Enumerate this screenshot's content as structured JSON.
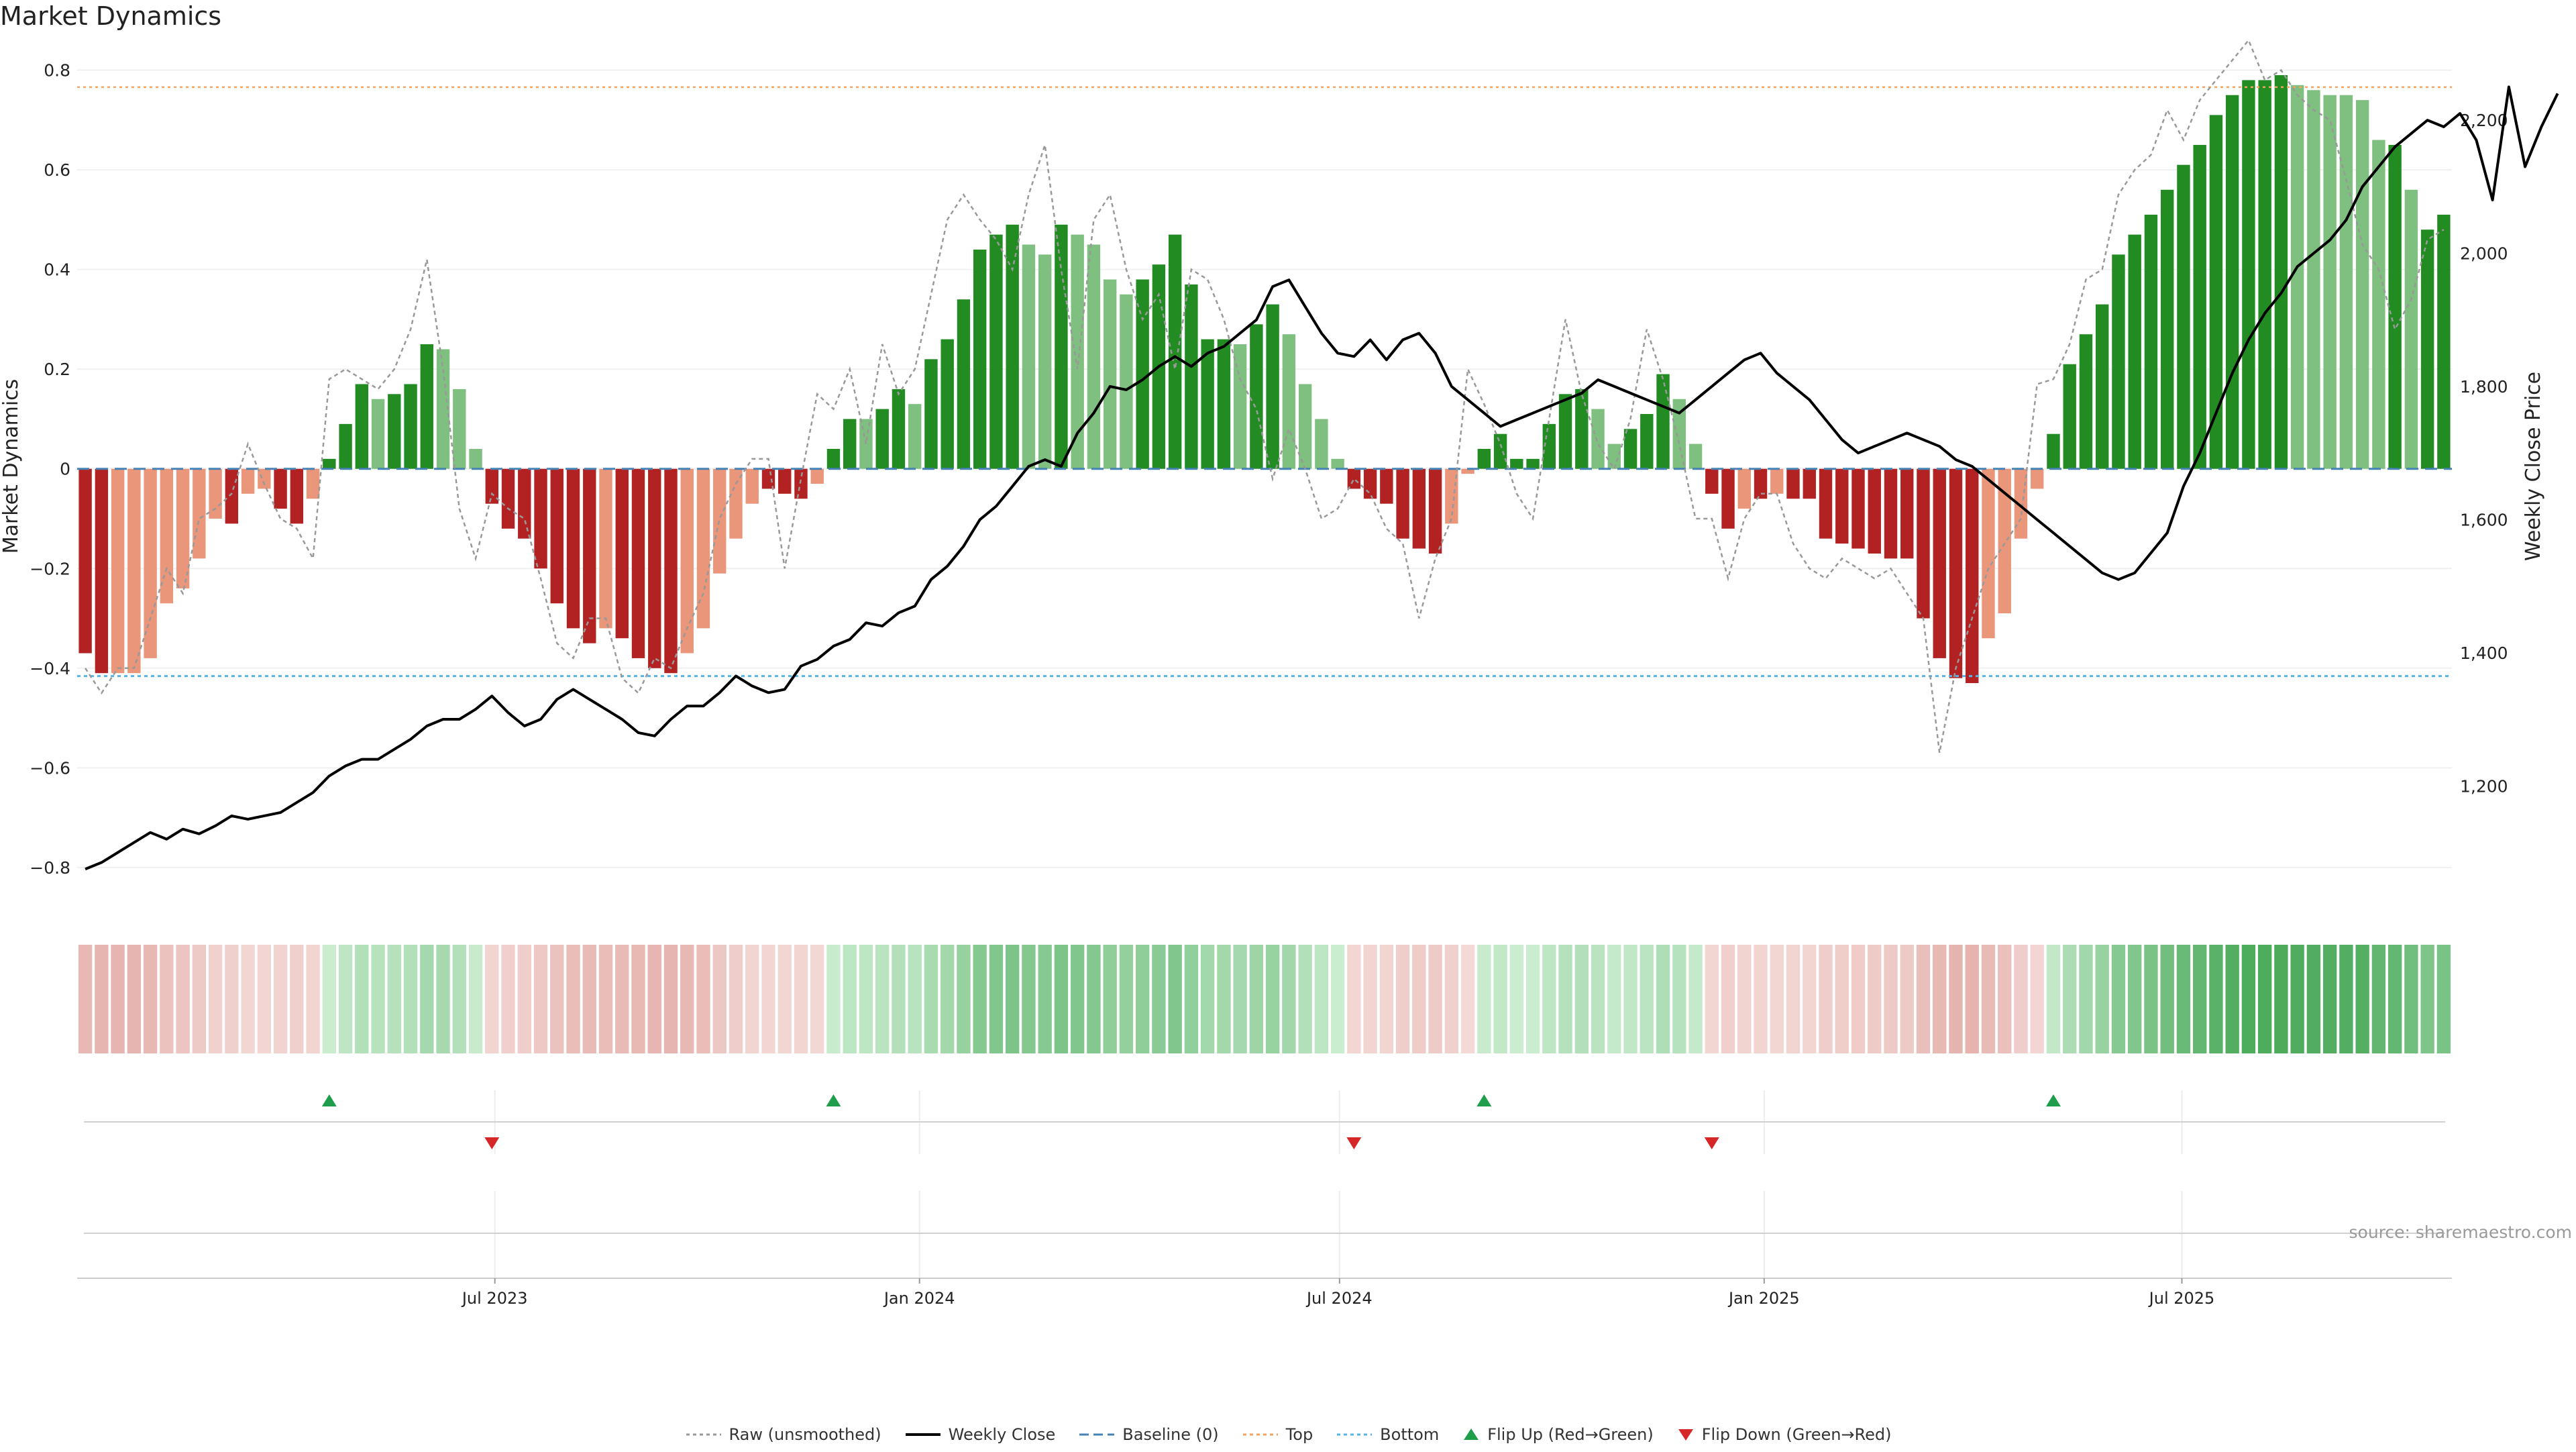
{
  "title": "Market Dynamics",
  "source": "source: sharemaestro.com",
  "colors": {
    "strong_green": "#228B22",
    "light_green": "#7FBF7F",
    "strong_red": "#B22222",
    "light_red": "#E9967A",
    "raw": "#999999",
    "close": "#000000",
    "baseline": "#4682B4",
    "top": "#F4A460",
    "bottom": "#56B4E9",
    "flip_up": "#1E9E4A",
    "flip_down": "#D62728"
  },
  "legend": [
    {
      "key": "raw",
      "label": "Raw (unsmoothed)"
    },
    {
      "key": "close",
      "label": "Weekly Close"
    },
    {
      "key": "baseline",
      "label": "Baseline (0)"
    },
    {
      "key": "top",
      "label": "Top"
    },
    {
      "key": "bottom",
      "label": "Bottom"
    },
    {
      "key": "flip_up",
      "label": "Flip Up (Red→Green)"
    },
    {
      "key": "flip_down",
      "label": "Flip Down (Green→Red)"
    }
  ],
  "chart_data": {
    "type": "bar",
    "title": "Market Dynamics",
    "ylabel": "Market Dynamics",
    "y2label": "Weekly Close Price",
    "ylim": [
      -0.85,
      0.86
    ],
    "y2lim": [
      1040,
      2320
    ],
    "yticks": [
      "0.8",
      "0.6",
      "0.4",
      "0.2",
      "0",
      "−0.2",
      "−0.4",
      "−0.6",
      "−0.8"
    ],
    "y2ticks": [
      "2,200",
      "2,000",
      "1,800",
      "1,600",
      "1,400",
      "1,200"
    ],
    "x_start": "2023-01-01",
    "x_end": "2025-10-26",
    "xticks": [
      {
        "label": "Jul 2023",
        "date": "2023-07-01"
      },
      {
        "label": "Jan 2024",
        "date": "2024-01-01"
      },
      {
        "label": "Jul 2024",
        "date": "2024-07-01"
      },
      {
        "label": "Jan 2025",
        "date": "2025-01-01"
      },
      {
        "label": "Jul 2025",
        "date": "2025-07-01"
      }
    ],
    "top_level": 0.766,
    "bottom_level": -0.416,
    "grid": true,
    "legend_position": "bottom",
    "series": [
      {
        "name": "Weekly Close",
        "role": "close"
      },
      {
        "name": "Raw (unsmoothed)",
        "role": "raw"
      }
    ],
    "bars": [
      -0.37,
      -0.41,
      -0.41,
      -0.41,
      -0.38,
      -0.27,
      -0.24,
      -0.18,
      -0.1,
      -0.11,
      -0.05,
      -0.04,
      -0.08,
      -0.11,
      -0.06,
      0.02,
      0.09,
      0.17,
      0.14,
      0.15,
      0.17,
      0.25,
      0.24,
      0.16,
      0.04,
      -0.07,
      -0.12,
      -0.14,
      -0.2,
      -0.27,
      -0.32,
      -0.35,
      -0.32,
      -0.34,
      -0.38,
      -0.4,
      -0.41,
      -0.37,
      -0.32,
      -0.21,
      -0.14,
      -0.07,
      -0.04,
      -0.05,
      -0.06,
      -0.03,
      0.04,
      0.1,
      0.1,
      0.12,
      0.16,
      0.13,
      0.22,
      0.26,
      0.34,
      0.44,
      0.47,
      0.49,
      0.45,
      0.43,
      0.49,
      0.47,
      0.45,
      0.38,
      0.35,
      0.38,
      0.41,
      0.47,
      0.37,
      0.26,
      0.26,
      0.25,
      0.29,
      0.33,
      0.27,
      0.17,
      0.1,
      0.02,
      -0.04,
      -0.06,
      -0.07,
      -0.14,
      -0.16,
      -0.17,
      -0.11,
      -0.01,
      0.04,
      0.07,
      0.02,
      0.02,
      0.09,
      0.15,
      0.16,
      0.12,
      0.05,
      0.08,
      0.11,
      0.19,
      0.14,
      0.05,
      -0.05,
      -0.12,
      -0.08,
      -0.06,
      -0.05,
      -0.06,
      -0.06,
      -0.14,
      -0.15,
      -0.16,
      -0.17,
      -0.18,
      -0.18,
      -0.3,
      -0.38,
      -0.42,
      -0.43,
      -0.34,
      -0.29,
      -0.14,
      -0.04,
      0.07,
      0.21,
      0.27,
      0.33,
      0.43,
      0.47,
      0.51,
      0.56,
      0.61,
      0.65,
      0.71,
      0.75,
      0.78,
      0.78,
      0.79,
      0.77,
      0.76,
      0.75,
      0.75,
      0.74,
      0.66,
      0.65,
      0.56,
      0.48,
      0.51
    ],
    "bar_strength": [
      1,
      1,
      0,
      0,
      0,
      0,
      0,
      0,
      0,
      1,
      0,
      0,
      1,
      1,
      0,
      1,
      1,
      1,
      0,
      1,
      1,
      1,
      0,
      0,
      0,
      1,
      1,
      1,
      1,
      1,
      1,
      1,
      0,
      1,
      1,
      1,
      1,
      0,
      0,
      0,
      0,
      0,
      1,
      1,
      1,
      0,
      1,
      1,
      0,
      1,
      1,
      0,
      1,
      1,
      1,
      1,
      1,
      1,
      0,
      0,
      1,
      0,
      0,
      0,
      0,
      1,
      1,
      1,
      1,
      1,
      1,
      0,
      1,
      1,
      0,
      0,
      0,
      0,
      1,
      1,
      1,
      1,
      1,
      1,
      0,
      0,
      1,
      1,
      1,
      1,
      1,
      1,
      1,
      0,
      0,
      1,
      1,
      1,
      0,
      0,
      1,
      1,
      0,
      1,
      0,
      1,
      1,
      1,
      1,
      1,
      1,
      1,
      1,
      1,
      1,
      1,
      1,
      0,
      0,
      0,
      0,
      1,
      1,
      1,
      1,
      1,
      1,
      1,
      1,
      1,
      1,
      1,
      1,
      1,
      1,
      1,
      0,
      0,
      0,
      0,
      0,
      0,
      1,
      0,
      1,
      1
    ],
    "raw": [
      -0.4,
      -0.45,
      -0.4,
      -0.4,
      -0.3,
      -0.2,
      -0.25,
      -0.1,
      -0.08,
      -0.05,
      0.05,
      -0.03,
      -0.1,
      -0.12,
      -0.18,
      0.18,
      0.2,
      0.18,
      0.16,
      0.2,
      0.28,
      0.42,
      0.2,
      -0.08,
      -0.18,
      -0.05,
      -0.08,
      -0.1,
      -0.22,
      -0.35,
      -0.38,
      -0.3,
      -0.3,
      -0.42,
      -0.45,
      -0.38,
      -0.4,
      -0.32,
      -0.25,
      -0.1,
      -0.03,
      0.02,
      0.02,
      -0.2,
      -0.02,
      0.15,
      0.12,
      0.2,
      0.05,
      0.25,
      0.15,
      0.2,
      0.35,
      0.5,
      0.55,
      0.5,
      0.46,
      0.4,
      0.55,
      0.65,
      0.4,
      0.2,
      0.5,
      0.55,
      0.4,
      0.3,
      0.35,
      0.2,
      0.4,
      0.38,
      0.3,
      0.18,
      0.12,
      -0.02,
      0.08,
      0.0,
      -0.1,
      -0.08,
      -0.02,
      -0.05,
      -0.12,
      -0.15,
      -0.3,
      -0.18,
      -0.1,
      0.2,
      0.13,
      0.05,
      -0.05,
      -0.1,
      0.1,
      0.3,
      0.15,
      0.05,
      0.0,
      0.1,
      0.28,
      0.18,
      0.05,
      -0.1,
      -0.1,
      -0.22,
      -0.1,
      -0.05,
      -0.05,
      -0.15,
      -0.2,
      -0.22,
      -0.18,
      -0.2,
      -0.22,
      -0.2,
      -0.25,
      -0.3,
      -0.57,
      -0.4,
      -0.3,
      -0.2,
      -0.15,
      -0.1,
      0.17,
      0.18,
      0.25,
      0.38,
      0.4,
      0.55,
      0.6,
      0.63,
      0.72,
      0.66,
      0.74,
      0.78,
      0.82,
      0.86,
      0.78,
      0.8,
      0.75,
      0.72,
      0.7,
      0.58,
      0.45,
      0.4,
      0.28,
      0.34,
      0.46,
      0.48
    ],
    "close": [
      1075,
      1085,
      1100,
      1115,
      1130,
      1120,
      1135,
      1128,
      1140,
      1155,
      1150,
      1155,
      1160,
      1175,
      1190,
      1215,
      1230,
      1240,
      1240,
      1255,
      1270,
      1290,
      1300,
      1300,
      1315,
      1335,
      1310,
      1290,
      1300,
      1330,
      1345,
      1330,
      1315,
      1300,
      1280,
      1275,
      1300,
      1320,
      1320,
      1340,
      1365,
      1350,
      1340,
      1345,
      1380,
      1390,
      1410,
      1420,
      1445,
      1440,
      1460,
      1470,
      1510,
      1530,
      1560,
      1600,
      1620,
      1650,
      1680,
      1690,
      1680,
      1730,
      1760,
      1800,
      1795,
      1810,
      1830,
      1845,
      1830,
      1850,
      1860,
      1880,
      1900,
      1950,
      1960,
      1920,
      1880,
      1850,
      1845,
      1870,
      1840,
      1870,
      1880,
      1850,
      1800,
      1780,
      1760,
      1740,
      1750,
      1760,
      1770,
      1780,
      1790,
      1810,
      1800,
      1790,
      1780,
      1770,
      1760,
      1780,
      1800,
      1820,
      1840,
      1850,
      1820,
      1800,
      1780,
      1750,
      1720,
      1700,
      1710,
      1720,
      1730,
      1720,
      1710,
      1690,
      1680,
      1660,
      1640,
      1620,
      1600,
      1580,
      1560,
      1540,
      1520,
      1510,
      1520,
      1550,
      1580,
      1650,
      1700,
      1760,
      1820,
      1870,
      1910,
      1940,
      1980,
      2000,
      2020,
      2050,
      2100,
      2130,
      2160,
      2180,
      2200,
      2190,
      2210,
      2170,
      2080,
      2250,
      2130,
      2190,
      2240
    ]
  }
}
